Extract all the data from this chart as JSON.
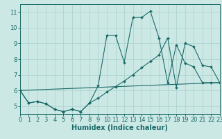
{
  "xlabel": "Humidex (Indice chaleur)",
  "bg_color": "#cce8e5",
  "line_color": "#1a6b68",
  "grid_color": "#aed4d0",
  "xlim": [
    0,
    23
  ],
  "ylim": [
    4.5,
    11.5
  ],
  "xticks": [
    0,
    1,
    2,
    3,
    4,
    5,
    6,
    7,
    8,
    9,
    10,
    11,
    12,
    13,
    14,
    15,
    16,
    17,
    18,
    19,
    20,
    21,
    22,
    23
  ],
  "yticks": [
    5,
    6,
    7,
    8,
    9,
    10,
    11
  ],
  "curve1_x": [
    0,
    1,
    2,
    3,
    4,
    5,
    6,
    7,
    8,
    9,
    10,
    11,
    12,
    13,
    14,
    15,
    16,
    17,
    18,
    19,
    20,
    21,
    22,
    23
  ],
  "curve1_y": [
    6.0,
    5.2,
    5.3,
    5.15,
    4.8,
    4.65,
    4.8,
    4.65,
    5.2,
    6.3,
    9.5,
    9.5,
    7.8,
    10.65,
    10.65,
    11.05,
    9.35,
    6.5,
    8.9,
    7.75,
    7.5,
    6.5,
    6.5,
    6.5
  ],
  "curve2_x": [
    0,
    1,
    2,
    3,
    4,
    5,
    6,
    7,
    8,
    9,
    10,
    11,
    12,
    13,
    14,
    15,
    16,
    17,
    18,
    19,
    20,
    21,
    22,
    23
  ],
  "curve2_y": [
    6.0,
    5.2,
    5.3,
    5.15,
    4.8,
    4.65,
    4.8,
    4.65,
    5.2,
    5.5,
    5.9,
    6.25,
    6.6,
    7.0,
    7.45,
    7.85,
    8.25,
    9.35,
    6.2,
    9.0,
    8.8,
    7.6,
    7.5,
    6.5
  ],
  "curve3_x": [
    0,
    23
  ],
  "curve3_y": [
    6.0,
    6.5
  ],
  "font_size": 7,
  "tick_font_size": 6,
  "marker_size": 2.0
}
